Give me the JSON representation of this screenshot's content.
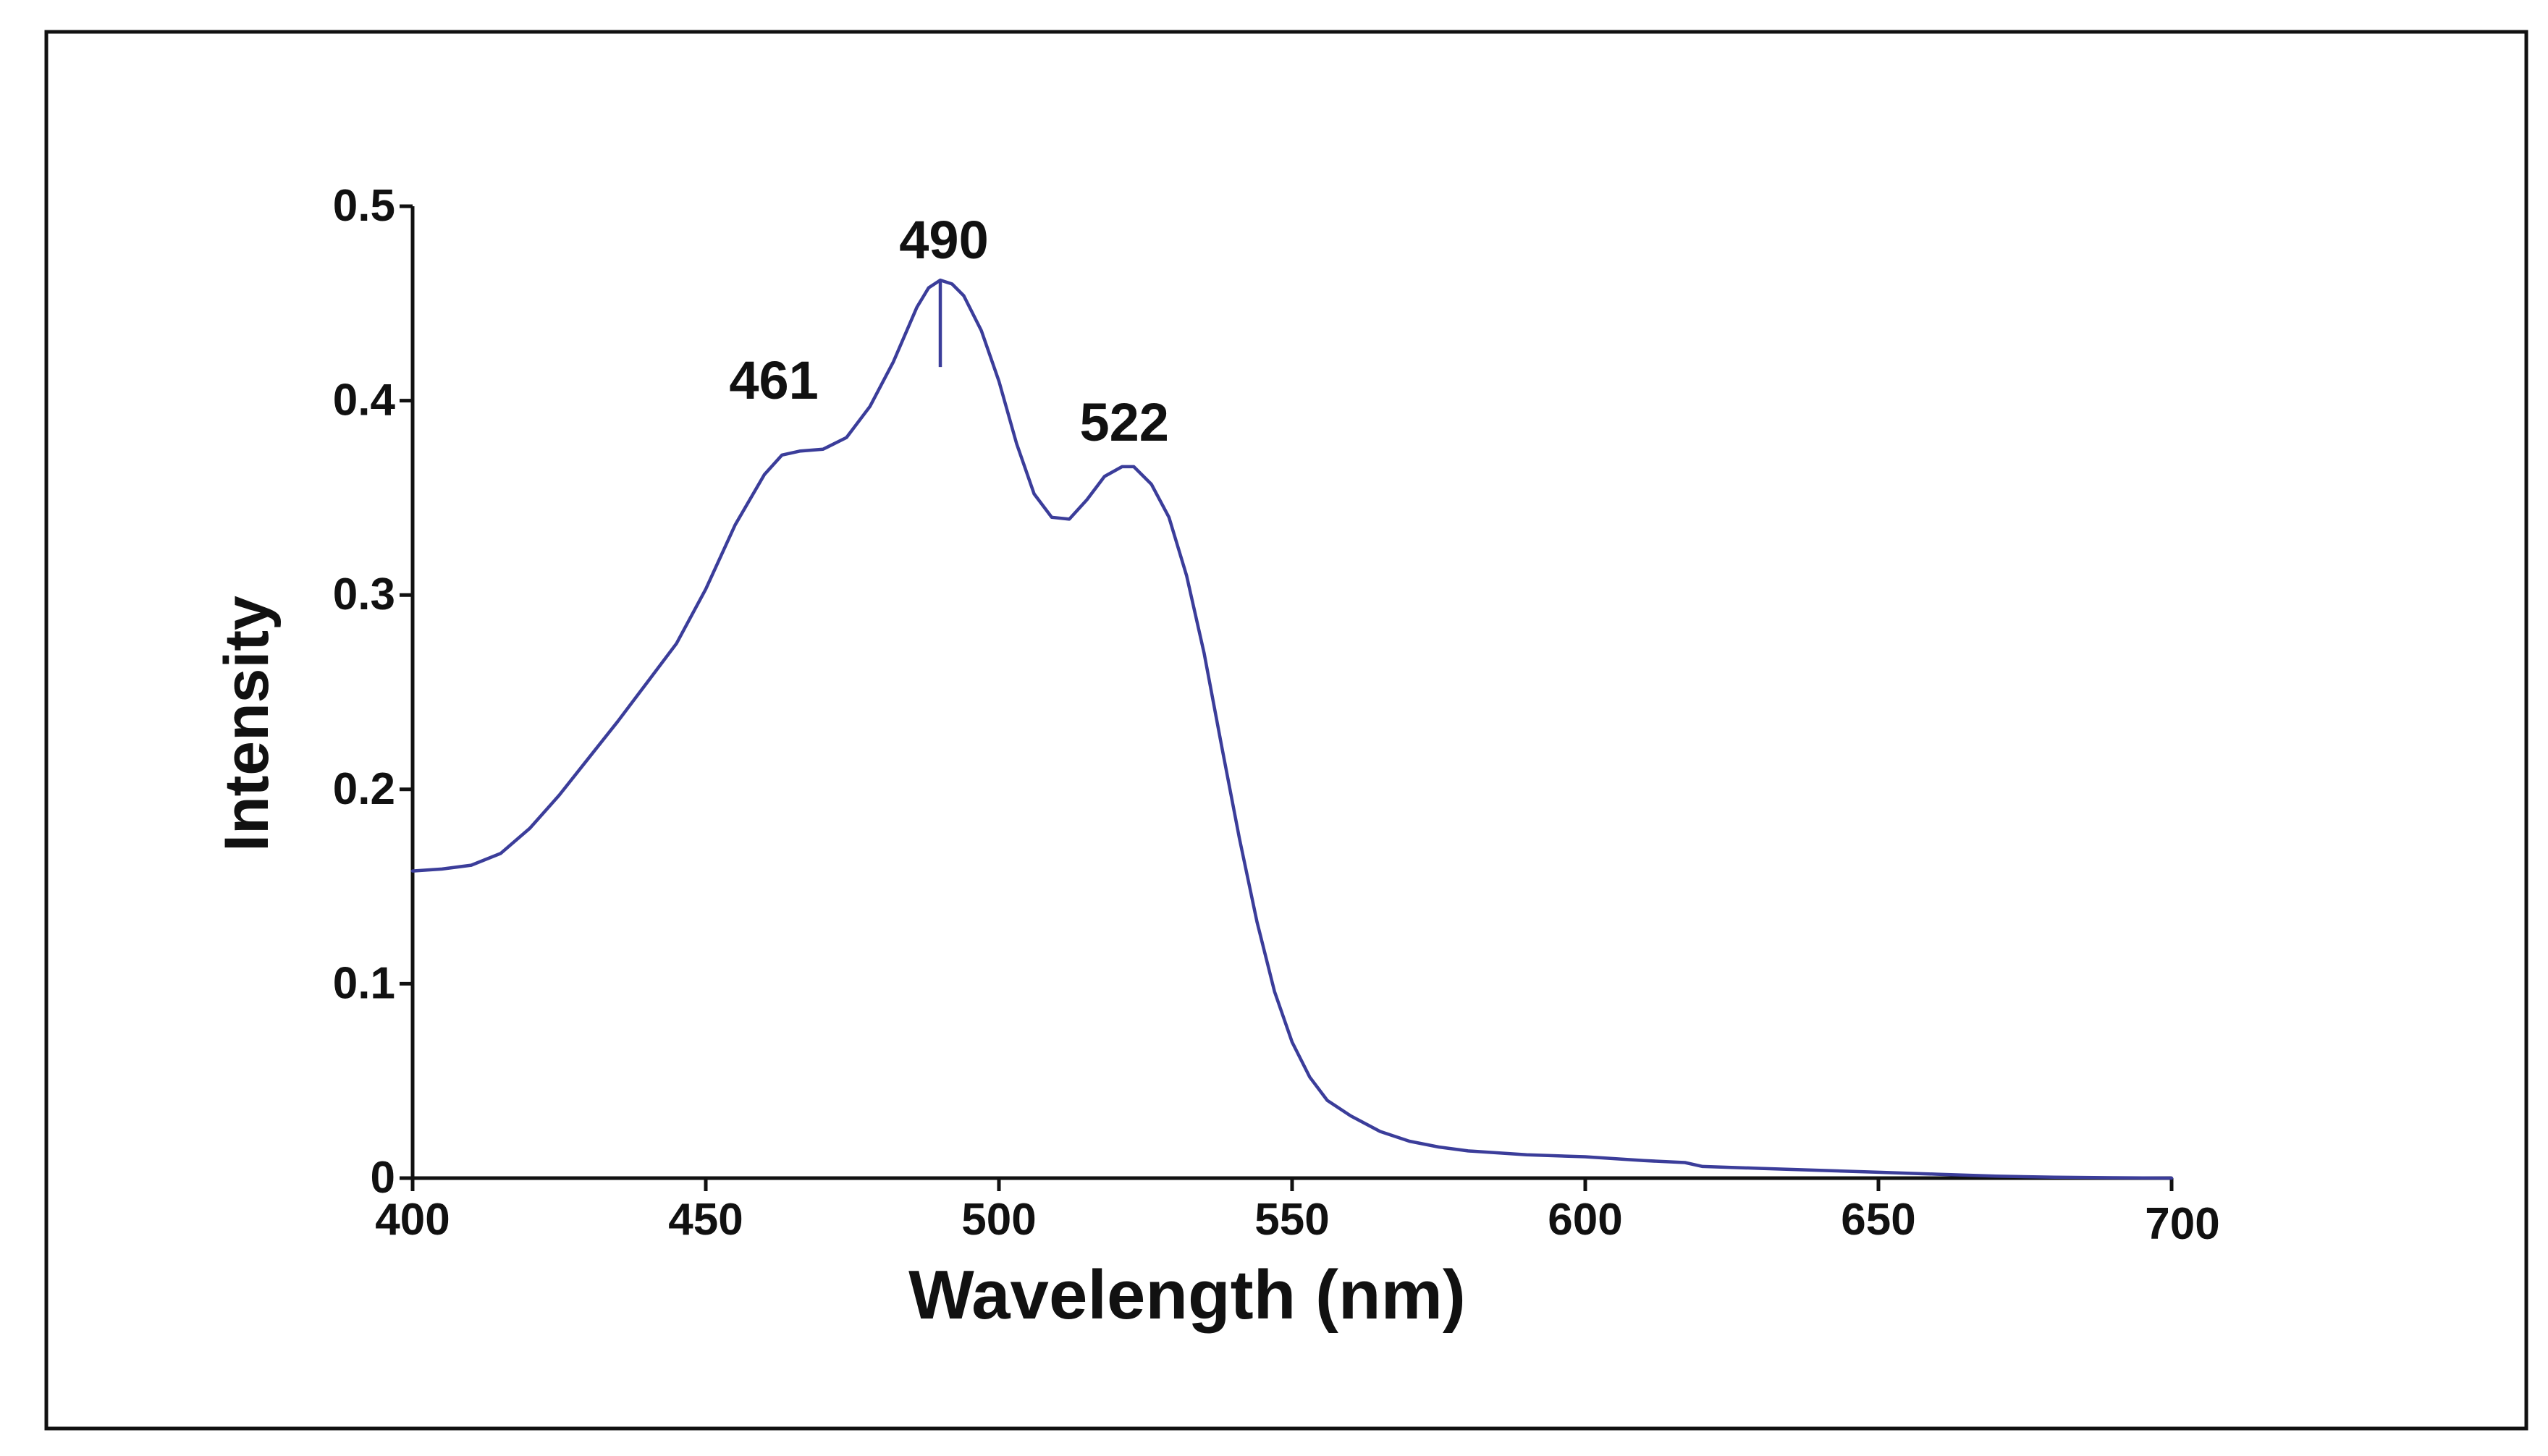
{
  "chart_data": {
    "type": "line",
    "title": "",
    "xlabel": "Wavelength (nm)",
    "ylabel": "Intensity",
    "xlim": [
      400,
      700
    ],
    "ylim": [
      0,
      0.5
    ],
    "grid": false,
    "x_ticks": [
      400,
      450,
      500,
      550,
      600,
      650,
      700
    ],
    "x_tick_labels": [
      "400",
      "450",
      "500",
      "550",
      "600",
      "650",
      "700"
    ],
    "y_ticks": [
      0,
      0.1,
      0.2,
      0.3,
      0.4,
      0.5
    ],
    "y_tick_labels": [
      "0",
      "0.1",
      "0.2",
      "0.3",
      "0.4",
      "0.5"
    ],
    "series": [
      {
        "name": "Intensity",
        "color": "#3b3d9a",
        "x": [
          400,
          405,
          410,
          415,
          420,
          425,
          430,
          435,
          440,
          445,
          450,
          455,
          460,
          463,
          466,
          470,
          474,
          478,
          482,
          486,
          488,
          490,
          492,
          494,
          497,
          500,
          503,
          506,
          509,
          512,
          515,
          518,
          521,
          523,
          526,
          529,
          532,
          535,
          538,
          541,
          544,
          547,
          550,
          553,
          556,
          560,
          565,
          570,
          575,
          580,
          590,
          600,
          610,
          617,
          620,
          630,
          640,
          650,
          660,
          670,
          680,
          690,
          700
        ],
        "values": [
          0.158,
          0.159,
          0.161,
          0.167,
          0.18,
          0.197,
          0.216,
          0.235,
          0.255,
          0.275,
          0.303,
          0.336,
          0.362,
          0.372,
          0.374,
          0.375,
          0.381,
          0.397,
          0.42,
          0.448,
          0.458,
          0.462,
          0.46,
          0.454,
          0.436,
          0.41,
          0.378,
          0.352,
          0.34,
          0.339,
          0.349,
          0.361,
          0.366,
          0.366,
          0.357,
          0.34,
          0.31,
          0.27,
          0.222,
          0.175,
          0.132,
          0.096,
          0.07,
          0.052,
          0.04,
          0.032,
          0.024,
          0.019,
          0.016,
          0.014,
          0.012,
          0.011,
          0.009,
          0.008,
          0.006,
          0.005,
          0.004,
          0.003,
          0.002,
          0.001,
          0.0005,
          0.0002,
          0.0
        ]
      }
    ],
    "annotations": [
      {
        "text": "490",
        "x": 490,
        "y": 0.462,
        "marker": "line"
      },
      {
        "text": "461",
        "x": 461,
        "y": 0.372
      },
      {
        "text": "522",
        "x": 522,
        "y": 0.366
      }
    ]
  }
}
